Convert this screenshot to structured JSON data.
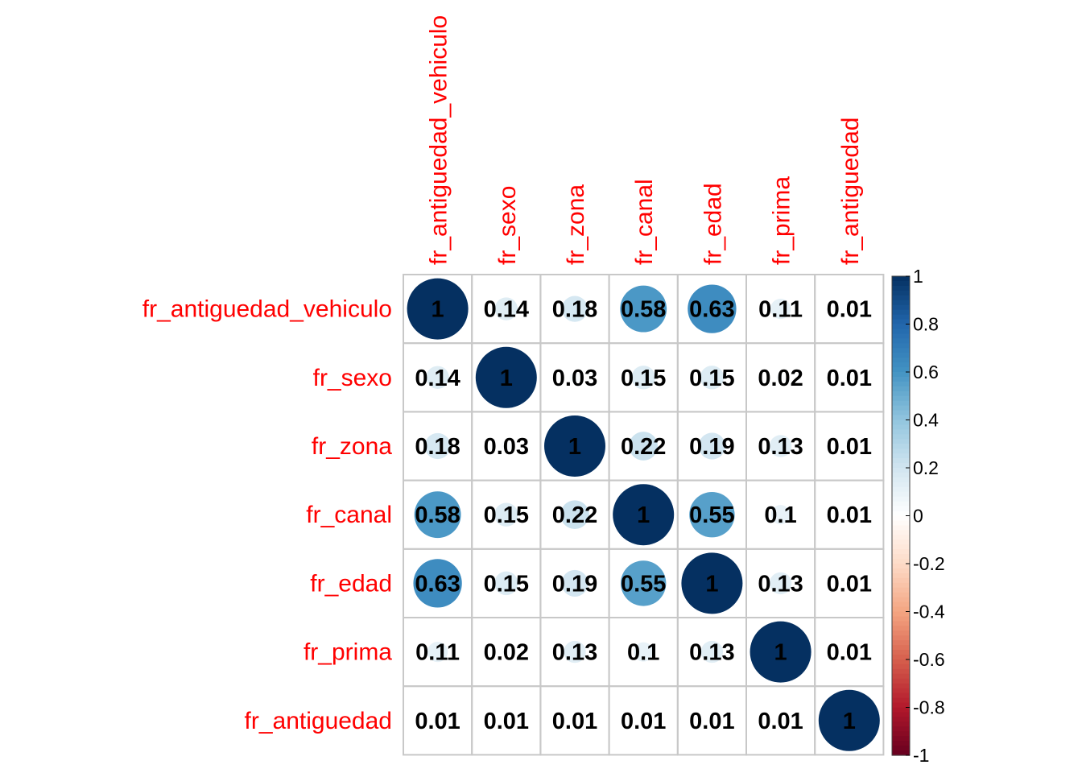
{
  "chart_data": {
    "type": "heatmap",
    "variables": [
      "fr_antiguedad_vehiculo",
      "fr_sexo",
      "fr_zona",
      "fr_canal",
      "fr_edad",
      "fr_prima",
      "fr_antiguedad"
    ],
    "matrix": [
      [
        1,
        0.14,
        0.18,
        0.58,
        0.63,
        0.11,
        0.01
      ],
      [
        0.14,
        1,
        0.03,
        0.15,
        0.15,
        0.02,
        0.01
      ],
      [
        0.18,
        0.03,
        1,
        0.22,
        0.19,
        0.13,
        0.01
      ],
      [
        0.58,
        0.15,
        0.22,
        1,
        0.55,
        0.1,
        0.01
      ],
      [
        0.63,
        0.15,
        0.19,
        0.55,
        1,
        0.13,
        0.01
      ],
      [
        0.11,
        0.02,
        0.13,
        0.1,
        0.13,
        1,
        0.01
      ],
      [
        0.01,
        0.01,
        0.01,
        0.01,
        0.01,
        0.01,
        1
      ]
    ],
    "labels": [
      [
        "1",
        "0.14",
        "0.18",
        "0.58",
        "0.63",
        "0.11",
        "0.01"
      ],
      [
        "0.14",
        "1",
        "0.03",
        "0.15",
        "0.15",
        "0.02",
        "0.01"
      ],
      [
        "0.18",
        "0.03",
        "1",
        "0.22",
        "0.19",
        "0.13",
        "0.01"
      ],
      [
        "0.58",
        "0.15",
        "0.22",
        "1",
        "0.55",
        "0.1",
        "0.01"
      ],
      [
        "0.63",
        "0.15",
        "0.19",
        "0.55",
        "1",
        "0.13",
        "0.01"
      ],
      [
        "0.11",
        "0.02",
        "0.13",
        "0.1",
        "0.13",
        "1",
        "0.01"
      ],
      [
        "0.01",
        "0.01",
        "0.01",
        "0.01",
        "0.01",
        "0.01",
        "1"
      ]
    ],
    "mark": "circle",
    "color_scale": {
      "range": [
        -1,
        1
      ],
      "ticks": [
        "1",
        "0.8",
        "0.6",
        "0.4",
        "0.2",
        "0",
        "-0.2",
        "-0.4",
        "-0.6",
        "-0.8",
        "-1"
      ],
      "colors": [
        "#67001F",
        "#B2182B",
        "#D6604D",
        "#F4A582",
        "#FDDBC7",
        "#FFFFFF",
        "#D1E5F0",
        "#92C5DE",
        "#4393C3",
        "#2166AC",
        "#053061"
      ]
    },
    "label_color": "#ff0000",
    "grid": true
  }
}
